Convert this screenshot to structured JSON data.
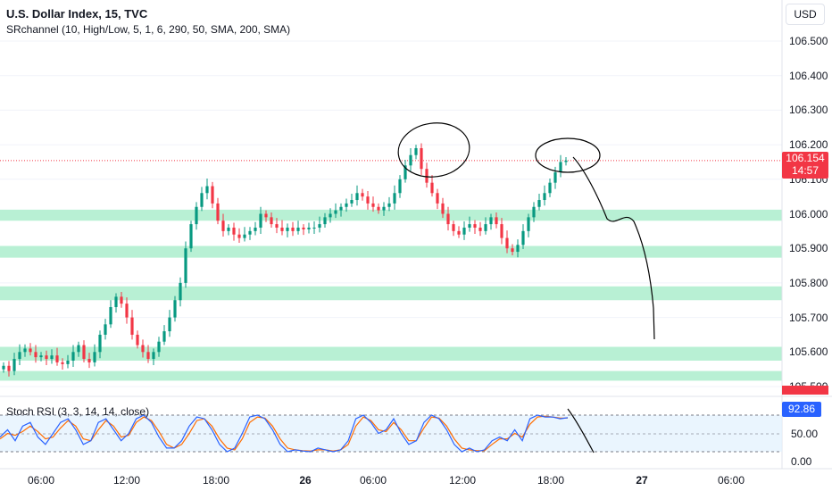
{
  "header": {
    "title": "U.S. Dollar Index, 15, TVC",
    "indicator": "SRchannel (10, High/Low, 5, 1, 6, 290, 50, SMA, 200, SMA)",
    "currency_button": "USD"
  },
  "price_axis": [
    "106.500",
    "106.400",
    "106.300",
    "106.200",
    "106.100",
    "106.000",
    "105.900",
    "105.800",
    "105.700",
    "105.600",
    "105.500"
  ],
  "current_price": {
    "value": "106.154",
    "countdown": "14:57"
  },
  "time_axis": [
    {
      "label": "06:00",
      "bold": false
    },
    {
      "label": "12:00",
      "bold": false
    },
    {
      "label": "18:00",
      "bold": false
    },
    {
      "label": "26",
      "bold": true
    },
    {
      "label": "06:00",
      "bold": false
    },
    {
      "label": "12:00",
      "bold": false
    },
    {
      "label": "18:00",
      "bold": false
    },
    {
      "label": "27",
      "bold": true
    },
    {
      "label": "06:00",
      "bold": false
    }
  ],
  "stoch_rsi": {
    "title": "Stoch RSI (3, 3, 14, 14, close)",
    "value": "92.86",
    "levels": [
      "50.00",
      "0.00"
    ]
  },
  "colors": {
    "up": "#089981",
    "down": "#f23645",
    "zone": "#b8f0d4",
    "k_line": "#2962ff",
    "d_line": "#ff6d00",
    "band": "#e3f2fd"
  },
  "chart_data": {
    "type": "candlestick",
    "symbol": "U.S. Dollar Index",
    "interval": "15",
    "source": "TVC",
    "ylim": [
      105.45,
      106.6
    ],
    "support_resistance_zones": [
      [
        105.98,
        106.012
      ],
      [
        105.873,
        105.907
      ],
      [
        105.75,
        105.79
      ],
      [
        105.575,
        105.615
      ],
      [
        105.517,
        105.545
      ]
    ],
    "last_price": 106.154,
    "path_points": [
      [
        105.56,
        105.545,
        105.58,
        105.6,
        105.61,
        105.6,
        105.585,
        105.59,
        105.58,
        105.59,
        105.57,
        105.565,
        105.575,
        105.6,
        105.62,
        105.58,
        105.57,
        105.6,
        105.65,
        105.68,
        105.73,
        105.76,
        105.74,
        105.7,
        105.65,
        105.62,
        105.6,
        105.58,
        105.6,
        105.63,
        105.66,
        105.7,
        105.75,
        105.8,
        105.9,
        105.97,
        106.02,
        106.06,
        106.08,
        106.03,
        105.98,
        105.95,
        105.96,
        105.94,
        105.93,
        105.94,
        105.95,
        105.96,
        106.0,
        105.99,
        105.97,
        105.96,
        105.95,
        105.96,
        105.95,
        105.96,
        105.955,
        105.96,
        105.96,
        105.97,
        105.99,
        106.0,
        106.01,
        106.02,
        106.03,
        106.04,
        106.06,
        106.05,
        106.03,
        106.02,
        106.01,
        106.02,
        106.03,
        106.06,
        106.1,
        106.14,
        106.17,
        106.19,
        106.13,
        106.09,
        106.06,
        106.03,
        106.0,
        105.97,
        105.95,
        105.94,
        105.96,
        105.97,
        105.96,
        105.95,
        105.97,
        105.99,
        105.97,
        105.93,
        105.9,
        105.89,
        105.91,
        105.95,
        105.99,
        106.02,
        106.04,
        106.06,
        106.09,
        106.12,
        106.15,
        106.154
      ],
      []
    ],
    "rsi_k": [
      0.4,
      0.6,
      0.3,
      0.7,
      0.8,
      0.4,
      0.2,
      0.5,
      0.8,
      0.9,
      0.6,
      0.2,
      0.3,
      0.8,
      0.9,
      0.6,
      0.3,
      0.5,
      0.9,
      1.0,
      0.8,
      0.4,
      0.1,
      0.1,
      0.3,
      0.7,
      0.95,
      0.9,
      0.6,
      0.2,
      0.0,
      0.1,
      0.5,
      0.95,
      1.0,
      0.9,
      0.6,
      0.2,
      0.0,
      0.05,
      0.02,
      0.0,
      0.1,
      0.05,
      0.0,
      0.05,
      0.3,
      0.9,
      1.0,
      0.8,
      0.5,
      0.6,
      0.9,
      0.5,
      0.2,
      0.3,
      0.8,
      1.0,
      0.9,
      0.6,
      0.2,
      0.0,
      0.1,
      0.0,
      0.05,
      0.3,
      0.4,
      0.3,
      0.6,
      0.3,
      0.9,
      1.0,
      0.95,
      0.95,
      0.9,
      0.93
    ],
    "rsi_d": [
      0.35,
      0.5,
      0.45,
      0.55,
      0.7,
      0.55,
      0.35,
      0.4,
      0.65,
      0.85,
      0.7,
      0.35,
      0.3,
      0.6,
      0.85,
      0.7,
      0.4,
      0.45,
      0.8,
      0.95,
      0.85,
      0.55,
      0.2,
      0.1,
      0.2,
      0.5,
      0.85,
      0.9,
      0.7,
      0.35,
      0.1,
      0.05,
      0.35,
      0.8,
      0.95,
      0.92,
      0.7,
      0.35,
      0.1,
      0.05,
      0.03,
      0.02,
      0.05,
      0.05,
      0.02,
      0.05,
      0.2,
      0.7,
      0.95,
      0.85,
      0.6,
      0.55,
      0.8,
      0.6,
      0.3,
      0.3,
      0.65,
      0.95,
      0.92,
      0.7,
      0.35,
      0.1,
      0.05,
      0.03,
      0.03,
      0.2,
      0.35,
      0.35,
      0.5,
      0.4,
      0.75,
      0.95,
      0.97,
      0.95,
      0.92,
      0.92
    ],
    "annotations": [
      "circle around high near 106.19",
      "circle around current high near 106.16",
      "hand-drawn projected path down toward 105.65"
    ]
  }
}
